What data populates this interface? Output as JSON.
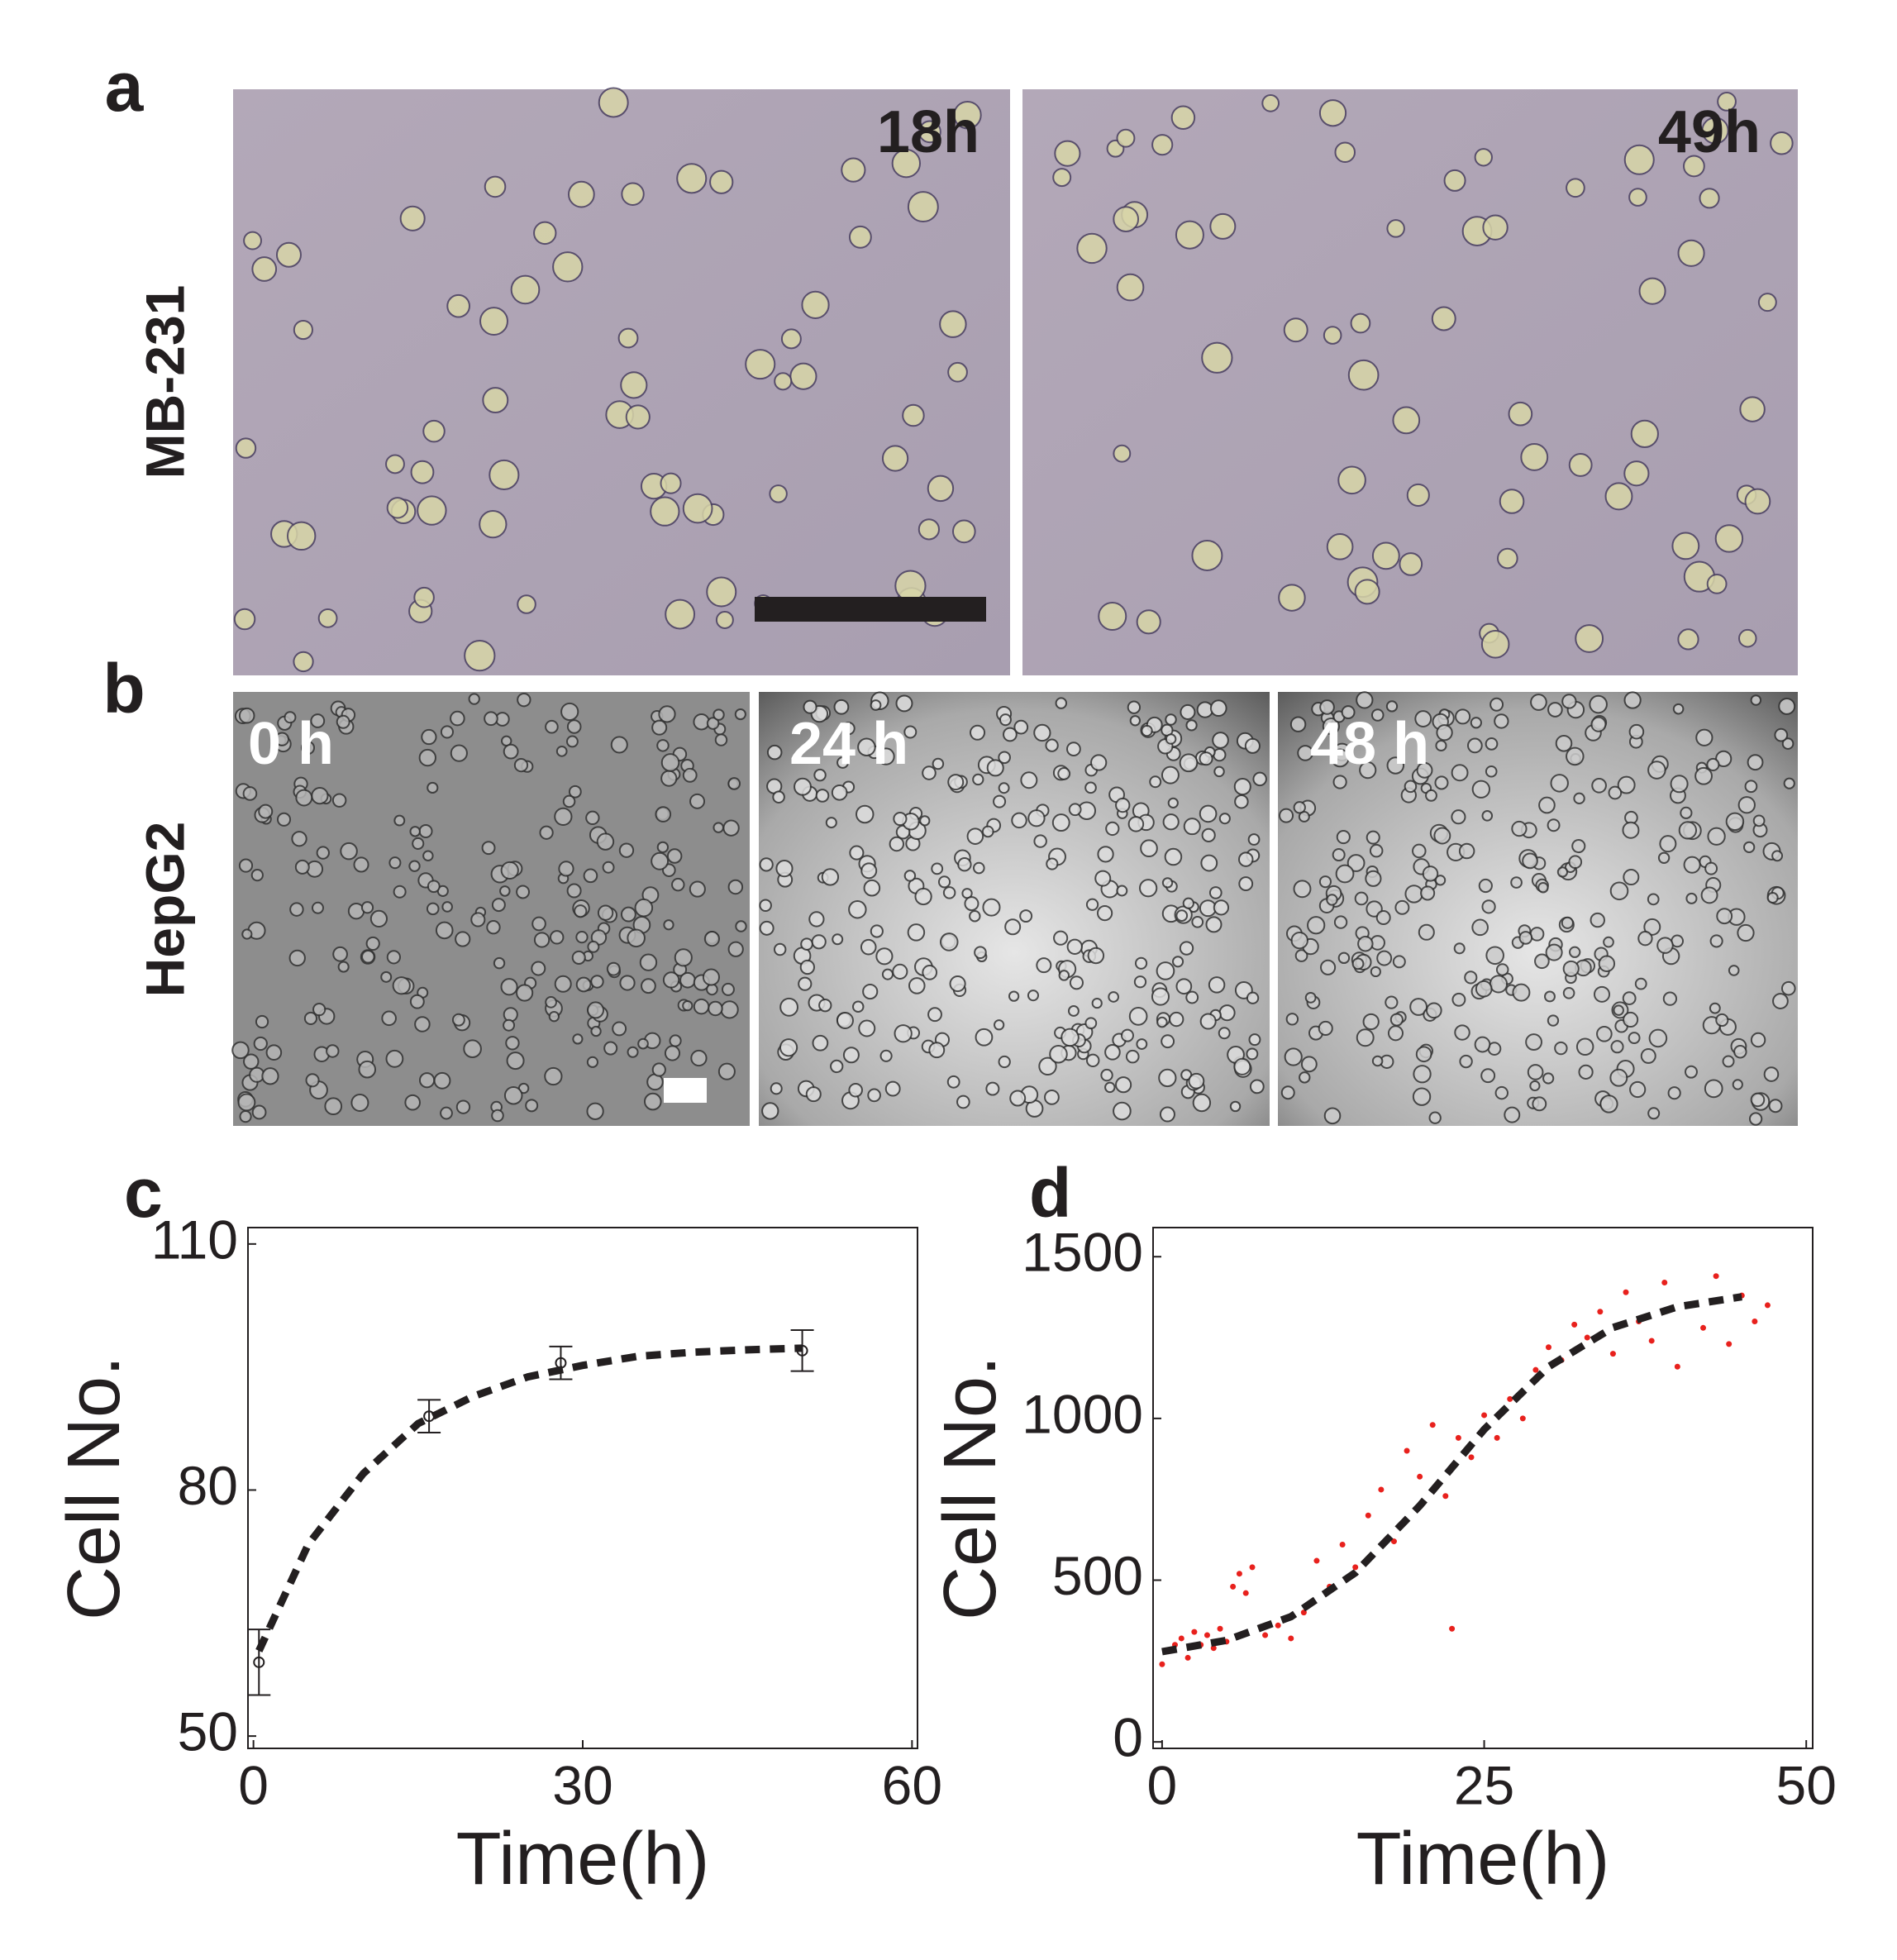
{
  "figure": {
    "panels": [
      {
        "label": "a",
        "row_label": "MB-231",
        "images": [
          "18h",
          "49h"
        ]
      },
      {
        "label": "b",
        "row_label": "HepG2",
        "images": [
          "0 h",
          "24 h",
          "48 h"
        ]
      }
    ]
  },
  "chart_data": [
    {
      "type": "scatter",
      "label": "c",
      "xlabel": "Time(h)",
      "ylabel": "Cell No.",
      "xlim": [
        -0.5,
        60.5
      ],
      "ylim": [
        48.5,
        112
      ],
      "xticks": [
        0,
        30,
        60
      ],
      "yticks": [
        50,
        80,
        110
      ],
      "series": [
        {
          "color": "#231f20",
          "x": [
            0.5,
            16,
            28,
            50
          ],
          "values": [
            59,
            89,
            95.5,
            97
          ],
          "errors": [
            4,
            2,
            2,
            2.5
          ]
        }
      ],
      "fit": {
        "color": "#231f20",
        "x": [
          0.5,
          5,
          10,
          15,
          20,
          25,
          30,
          35,
          40,
          45,
          50
        ],
        "values": [
          60.4,
          73.4,
          82,
          88.1,
          91.4,
          93.8,
          95.2,
          96.3,
          96.8,
          97.1,
          97.3
        ]
      }
    },
    {
      "type": "scatter",
      "label": "d",
      "xlabel": "Time(h)",
      "ylabel": "Cell No.",
      "xlim": [
        -0.7,
        50.5
      ],
      "ylim": [
        -20,
        1590
      ],
      "xticks": [
        0,
        25,
        50
      ],
      "yticks": [
        0,
        500,
        1000,
        1500
      ],
      "series": [
        {
          "color": "#e8211d",
          "x": [
            0,
            0.5,
            1,
            1.5,
            2,
            2.5,
            3,
            3.5,
            4,
            4.5,
            5,
            5.5,
            6,
            6.5,
            7,
            8,
            9,
            10,
            11,
            12,
            13,
            14,
            15,
            16,
            17,
            18,
            19,
            20,
            21,
            22,
            22.5,
            23,
            24,
            25,
            26,
            27,
            28,
            29,
            30,
            31,
            32,
            33,
            34,
            35,
            36,
            37,
            38,
            39,
            40,
            41,
            42,
            43,
            44,
            45,
            46,
            47
          ],
          "values": [
            240,
            280,
            300,
            320,
            260,
            340,
            300,
            330,
            290,
            350,
            310,
            480,
            520,
            460,
            540,
            330,
            360,
            320,
            400,
            560,
            480,
            610,
            540,
            700,
            780,
            620,
            900,
            820,
            980,
            760,
            350,
            940,
            880,
            1010,
            940,
            1060,
            1000,
            1150,
            1220,
            1180,
            1290,
            1250,
            1330,
            1200,
            1390,
            1300,
            1240,
            1420,
            1160,
            1350,
            1280,
            1440,
            1230,
            1380,
            1300,
            1350
          ]
        }
      ],
      "fit": {
        "color": "#231f20",
        "x": [
          0,
          5,
          10,
          15,
          20,
          25,
          30,
          35,
          40,
          45
        ],
        "values": [
          279,
          314,
          387,
          523,
          730,
          966,
          1160,
          1281,
          1345,
          1376
        ]
      }
    }
  ]
}
